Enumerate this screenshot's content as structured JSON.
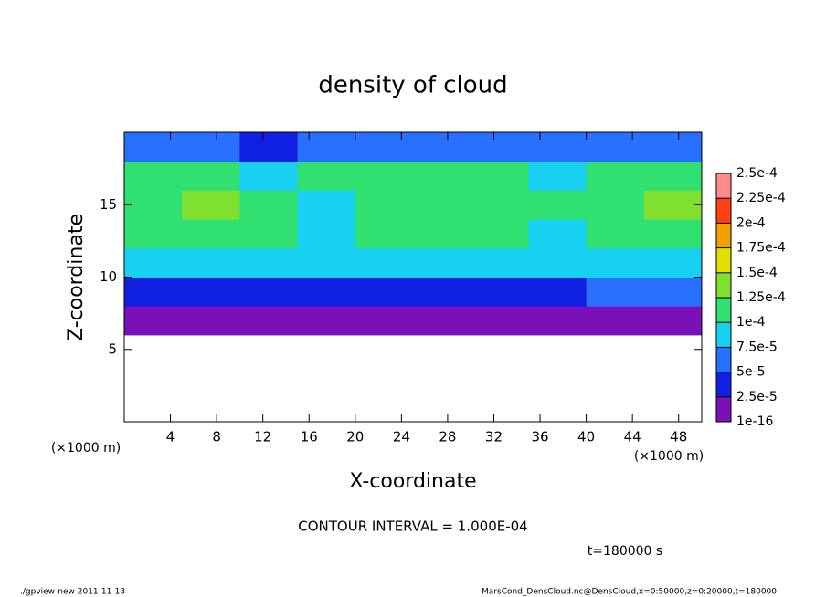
{
  "chart_data": {
    "type": "heatmap",
    "title": "density of cloud",
    "x_label": "X-coordinate",
    "y_label": "Z-coordinate",
    "x_unit": "(×1000 m)",
    "note": "CONTOUR INTERVAL = 1.000E-04",
    "time_label": "t=180000 s",
    "footer_left": "./gpview-new  2011-11-13",
    "footer_right": "MarsCond_DensCloud.nc@DensCloud,x=0:50000,z=0:20000,t=180000",
    "xlim": [
      0,
      50
    ],
    "ylim": [
      0,
      20
    ],
    "xticks": [
      4,
      8,
      12,
      16,
      20,
      24,
      28,
      32,
      36,
      40,
      44,
      48
    ],
    "yticks": [
      5,
      10,
      15
    ],
    "xbins": [
      0,
      5,
      10,
      15,
      20,
      25,
      30,
      35,
      40,
      45,
      50
    ],
    "ybins": [
      0,
      2,
      4,
      6,
      8,
      10,
      12,
      14,
      16,
      18,
      20
    ],
    "values": [
      [
        null,
        null,
        null,
        null,
        null,
        null,
        null,
        null,
        null,
        null
      ],
      [
        null,
        null,
        null,
        null,
        null,
        null,
        null,
        null,
        null,
        null
      ],
      [
        null,
        null,
        null,
        null,
        null,
        null,
        null,
        null,
        null,
        null
      ],
      [
        1e-05,
        1.5e-05,
        1e-05,
        1e-05,
        1e-05,
        1e-05,
        1e-05,
        1e-05,
        1.5e-05,
        2e-05
      ],
      [
        3e-05,
        3.5e-05,
        3e-05,
        3e-05,
        3e-05,
        3e-05,
        3e-05,
        4e-05,
        5e-05,
        6e-05
      ],
      [
        9e-05,
        9e-05,
        8.5e-05,
        8.5e-05,
        9e-05,
        9e-05,
        9e-05,
        8.5e-05,
        8e-05,
        8e-05
      ],
      [
        0.00011,
        0.000115,
        0.000105,
        8e-05,
        0.00011,
        0.00012,
        0.000115,
        9e-05,
        0.00011,
        0.00011
      ],
      [
        0.00012,
        0.000125,
        0.000115,
        9e-05,
        0.000115,
        0.00012,
        0.00012,
        0.000105,
        0.00012,
        0.000125
      ],
      [
        0.000115,
        0.00011,
        8e-05,
        0.000105,
        0.000115,
        0.00012,
        0.000115,
        9e-05,
        0.00011,
        0.0001
      ],
      [
        5e-05,
        6e-05,
        4e-05,
        5e-05,
        6e-05,
        7e-05,
        6e-05,
        5e-05,
        6e-05,
        5e-05
      ]
    ],
    "colorbar_ticks": [
      {
        "value": 1e-16,
        "label": "1e-16"
      },
      {
        "value": 2.5e-05,
        "label": "2.5e-5"
      },
      {
        "value": 5e-05,
        "label": "5e-5"
      },
      {
        "value": 7.5e-05,
        "label": "7.5e-5"
      },
      {
        "value": 0.0001,
        "label": "1e-4"
      },
      {
        "value": 0.000125,
        "label": "1.25e-4"
      },
      {
        "value": 0.00015,
        "label": "1.5e-4"
      },
      {
        "value": 0.000175,
        "label": "1.75e-4"
      },
      {
        "value": 0.0002,
        "label": "2e-4"
      },
      {
        "value": 0.000225,
        "label": "2.25e-4"
      },
      {
        "value": 0.00025,
        "label": "2.5e-4"
      }
    ],
    "colors": [
      "#7a10b8",
      "#1020e0",
      "#2a70ff",
      "#18d0f0",
      "#30e070",
      "#80e030",
      "#e0e000",
      "#f0a000",
      "#ff4010",
      "#ff8a8a"
    ]
  }
}
